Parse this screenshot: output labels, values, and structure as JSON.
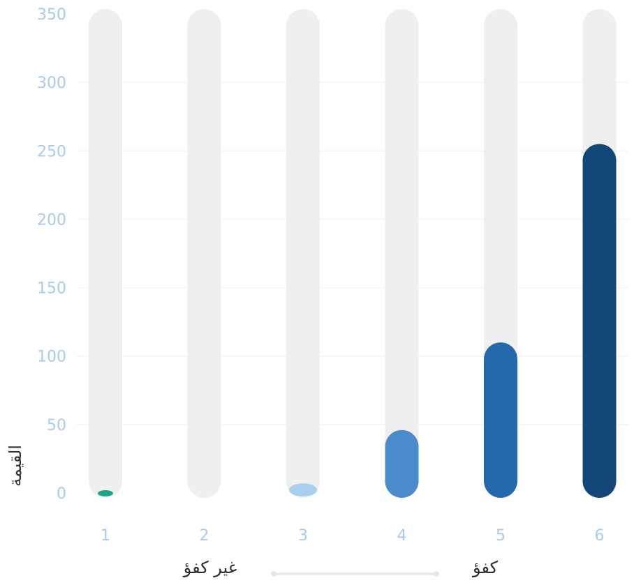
{
  "chart_data": {
    "type": "bar",
    "title": "",
    "xlabel": "",
    "ylabel": "القيمة",
    "categories": [
      "1",
      "2",
      "3",
      "4",
      "5",
      "6"
    ],
    "values": [
      1,
      0,
      6,
      46,
      110,
      255
    ],
    "ylim": [
      0,
      350
    ],
    "yticks": [
      0,
      50,
      100,
      150,
      200,
      250,
      300,
      350
    ],
    "bar_colors": [
      "#1aa58e",
      "#eef0f0",
      "#a9cfee",
      "#4a8ccb",
      "#2469ab",
      "#124677"
    ],
    "track_color": "#eef0f0",
    "grid": true,
    "legend": {
      "high_label": "كفؤ",
      "low_label": "غير كفؤ",
      "placement": "bottom"
    }
  }
}
